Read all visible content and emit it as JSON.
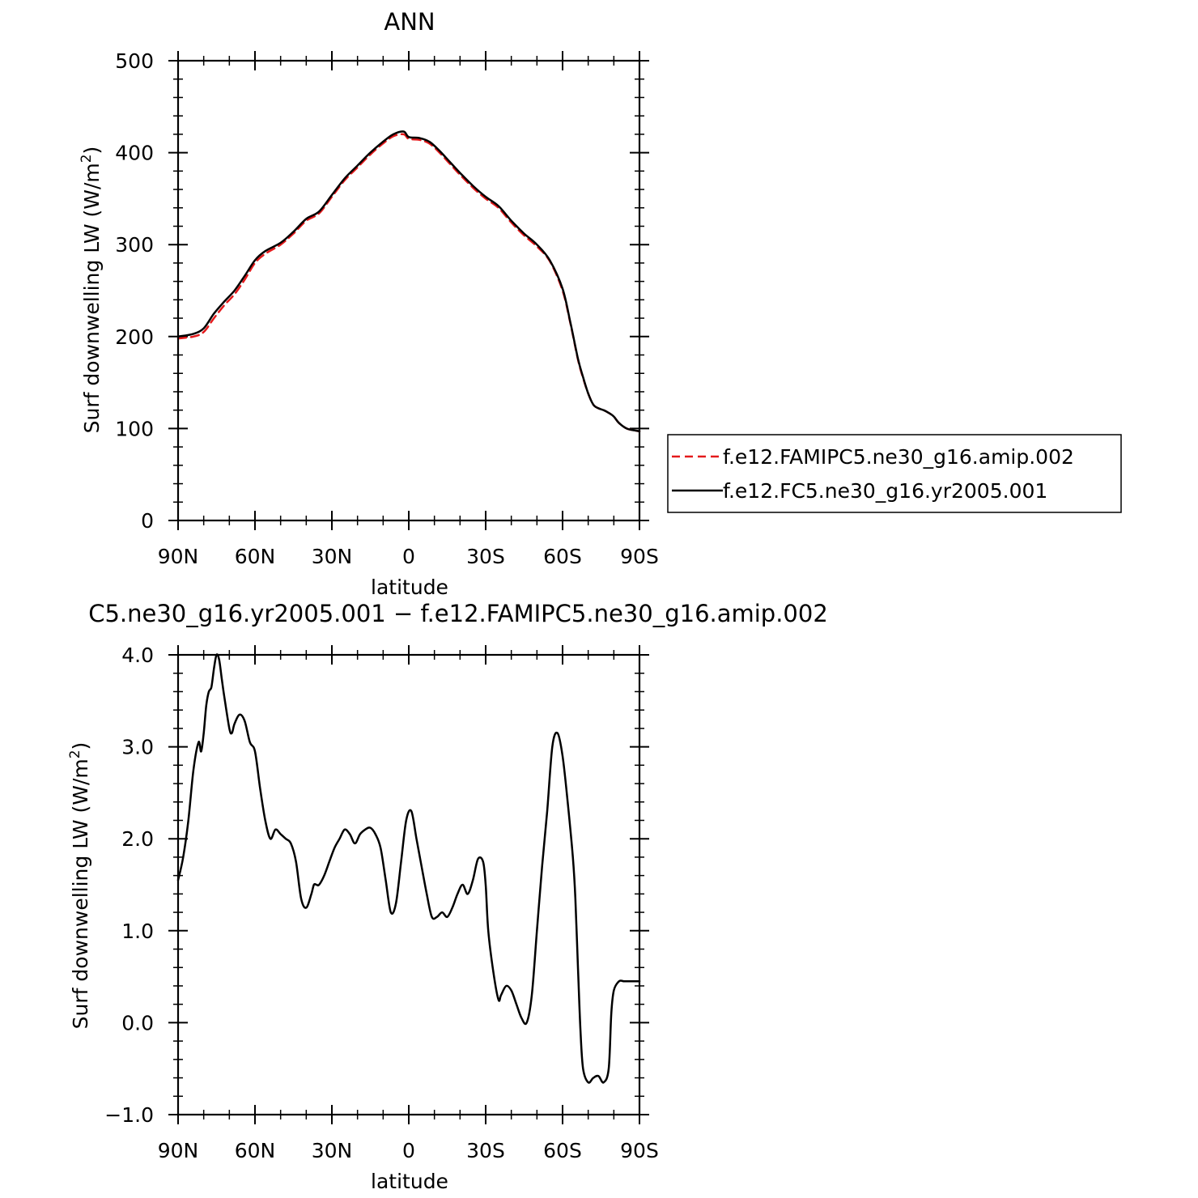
{
  "chart_data": [
    {
      "type": "line",
      "title": "ANN",
      "xlabel": "latitude",
      "ylabel": "Surf downwelling LW (W/m²)",
      "ylabel_parts": {
        "base": "Surf downwelling LW (W/m",
        "sup": "2",
        "end": ")"
      },
      "xlim": [
        -90,
        90
      ],
      "ylim": [
        0,
        500
      ],
      "x_ticks": [
        -90,
        -60,
        -30,
        0,
        30,
        60,
        90
      ],
      "x_tick_labels": [
        "90N",
        "60N",
        "30N",
        "0",
        "30S",
        "60S",
        "90S"
      ],
      "y_ticks": [
        0,
        100,
        200,
        300,
        400,
        500
      ],
      "y_tick_labels": [
        "0",
        "100",
        "200",
        "300",
        "400",
        "500"
      ],
      "legend": "outside-right",
      "series": [
        {
          "name": "f.e12.FAMIPC5.ne30_g16.amip.002",
          "color": "#e41a1c",
          "style": "dashed",
          "x": [
            -90,
            -84,
            -80,
            -76,
            -72,
            -68,
            -64,
            -60,
            -56,
            -50,
            -45,
            -40,
            -35,
            -30,
            -25,
            -20,
            -15,
            -10,
            -6,
            -2,
            0,
            4,
            8,
            12,
            16,
            20,
            25,
            30,
            35,
            40,
            45,
            50,
            55,
            60,
            63,
            66,
            68,
            70,
            72,
            74,
            76,
            78,
            80,
            82,
            85,
            88,
            90
          ],
          "values": [
            198,
            200,
            205,
            220,
            234,
            246,
            262,
            280,
            290,
            300,
            312,
            326,
            334,
            352,
            370,
            384,
            398,
            410,
            418,
            420,
            415,
            414,
            410,
            400,
            388,
            376,
            362,
            350,
            340,
            324,
            310,
            298,
            282,
            250,
            215,
            175,
            155,
            138,
            126,
            122,
            120,
            117,
            113,
            106,
            100,
            98,
            97
          ]
        },
        {
          "name": "f.e12.FC5.ne30_g16.yr2005.001",
          "color": "#000000",
          "style": "solid",
          "x": [
            -90,
            -84,
            -80,
            -76,
            -72,
            -68,
            -64,
            -60,
            -56,
            -50,
            -45,
            -40,
            -35,
            -30,
            -25,
            -20,
            -15,
            -10,
            -6,
            -2,
            0,
            4,
            8,
            12,
            16,
            20,
            25,
            30,
            35,
            40,
            45,
            50,
            55,
            60,
            63,
            66,
            68,
            70,
            72,
            74,
            76,
            78,
            80,
            82,
            85,
            88,
            90
          ],
          "values": [
            200,
            203,
            209,
            225,
            238,
            250,
            266,
            283,
            293,
            302,
            314,
            328,
            336,
            354,
            372,
            386,
            400,
            412,
            420,
            423,
            417,
            416,
            412,
            402,
            390,
            378,
            364,
            352,
            342,
            326,
            312,
            300,
            283,
            252,
            216,
            176,
            156,
            138,
            126,
            122,
            120,
            117,
            113,
            106,
            100,
            98,
            97
          ]
        }
      ]
    },
    {
      "type": "line",
      "title": "C5.ne30_g16.yr2005.001 − f.e12.FAMIPC5.ne30_g16.amip.002",
      "xlabel": "latitude",
      "ylabel": "Surf downwelling LW (W/m²)",
      "ylabel_parts": {
        "base": "Surf downwelling LW (W/m",
        "sup": "2",
        "end": ")"
      },
      "xlim": [
        -90,
        90
      ],
      "ylim": [
        -1.0,
        4.0
      ],
      "x_ticks": [
        -90,
        -60,
        -30,
        0,
        30,
        60,
        90
      ],
      "x_tick_labels": [
        "90N",
        "60N",
        "30N",
        "0",
        "30S",
        "60S",
        "90S"
      ],
      "y_ticks": [
        -1.0,
        0.0,
        1.0,
        2.0,
        3.0,
        4.0
      ],
      "y_tick_labels": [
        "−1.0",
        "0.0",
        "1.0",
        "2.0",
        "3.0",
        "4.0"
      ],
      "series": [
        {
          "color": "#000000",
          "style": "solid",
          "x": [
            -90,
            -88,
            -86,
            -84,
            -82,
            -81,
            -80,
            -79,
            -78,
            -77,
            -76,
            -75,
            -74,
            -73,
            -72,
            -70,
            -69,
            -68,
            -66,
            -64,
            -62,
            -60,
            -58,
            -56,
            -54,
            -52,
            -50,
            -48,
            -46,
            -44,
            -42,
            -40,
            -38,
            -37,
            -36,
            -35,
            -33,
            -31,
            -29,
            -27,
            -25,
            -23,
            -21,
            -19,
            -17,
            -15,
            -13,
            -11,
            -9,
            -7,
            -5,
            -3,
            -1,
            1,
            3,
            5,
            7,
            9,
            11,
            13,
            15,
            17,
            19,
            21,
            23,
            25,
            27,
            29,
            30,
            31,
            33,
            35,
            36,
            38,
            40,
            42,
            44,
            46,
            48,
            50,
            52,
            54,
            56,
            58,
            60,
            62,
            64,
            65,
            66,
            67,
            68,
            70,
            72,
            74,
            76,
            78,
            79,
            80,
            82,
            84,
            86,
            88,
            90
          ],
          "values": [
            1.55,
            1.8,
            2.2,
            2.75,
            3.05,
            2.95,
            3.15,
            3.45,
            3.6,
            3.65,
            3.85,
            4.0,
            3.95,
            3.75,
            3.55,
            3.2,
            3.15,
            3.25,
            3.35,
            3.28,
            3.05,
            2.95,
            2.55,
            2.2,
            2.0,
            2.1,
            2.05,
            2.0,
            1.95,
            1.75,
            1.35,
            1.25,
            1.4,
            1.5,
            1.5,
            1.5,
            1.6,
            1.75,
            1.9,
            2.0,
            2.1,
            2.05,
            1.95,
            2.05,
            2.1,
            2.12,
            2.05,
            1.9,
            1.55,
            1.2,
            1.3,
            1.75,
            2.2,
            2.3,
            2.0,
            1.7,
            1.4,
            1.15,
            1.15,
            1.2,
            1.15,
            1.25,
            1.4,
            1.5,
            1.4,
            1.55,
            1.78,
            1.75,
            1.5,
            1.0,
            0.55,
            0.25,
            0.3,
            0.4,
            0.35,
            0.2,
            0.05,
            0.0,
            0.3,
            1.0,
            1.7,
            2.3,
            3.0,
            3.15,
            2.9,
            2.4,
            1.8,
            1.35,
            0.6,
            -0.1,
            -0.5,
            -0.65,
            -0.6,
            -0.58,
            -0.65,
            -0.5,
            0.1,
            0.35,
            0.45,
            0.45,
            0.45,
            0.45,
            0.45
          ]
        }
      ]
    }
  ]
}
